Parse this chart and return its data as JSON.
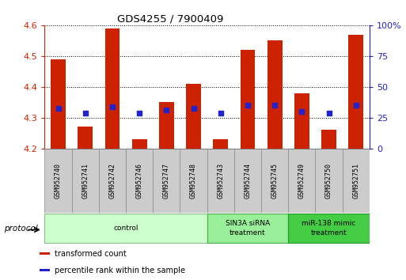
{
  "title": "GDS4255 / 7900409",
  "samples": [
    "GSM952740",
    "GSM952741",
    "GSM952742",
    "GSM952746",
    "GSM952747",
    "GSM952748",
    "GSM952743",
    "GSM952744",
    "GSM952745",
    "GSM952749",
    "GSM952750",
    "GSM952751"
  ],
  "bar_tops": [
    4.49,
    4.27,
    4.59,
    4.23,
    4.35,
    4.41,
    4.23,
    4.52,
    4.55,
    4.38,
    4.26,
    4.57
  ],
  "bar_bottom": 4.2,
  "blue_dots": [
    4.33,
    4.315,
    4.335,
    4.315,
    4.325,
    4.33,
    4.315,
    4.34,
    4.34,
    4.32,
    4.315,
    4.34
  ],
  "bar_color": "#cc2200",
  "dot_color": "#2222cc",
  "ylim_left": [
    4.2,
    4.6
  ],
  "ylim_right": [
    0,
    100
  ],
  "yticks_left": [
    4.2,
    4.3,
    4.4,
    4.5,
    4.6
  ],
  "yticks_right": [
    0,
    25,
    50,
    75,
    100
  ],
  "ytick_labels_right": [
    "0",
    "25",
    "50",
    "75",
    "100%"
  ],
  "groups": [
    {
      "label": "control",
      "start": 0,
      "end": 6,
      "color": "#ccffcc",
      "edge_color": "#88bb88"
    },
    {
      "label": "SIN3A siRNA\ntreatment",
      "start": 6,
      "end": 9,
      "color": "#99ee99",
      "edge_color": "#44aa44"
    },
    {
      "label": "miR-138 mimic\ntreatment",
      "start": 9,
      "end": 12,
      "color": "#44cc44",
      "edge_color": "#229922"
    }
  ],
  "protocol_label": "protocol",
  "legend_items": [
    {
      "label": "transformed count",
      "color": "#cc2200"
    },
    {
      "label": "percentile rank within the sample",
      "color": "#2222cc"
    }
  ],
  "grid_color": "#000000",
  "bg_color": "#ffffff",
  "plot_bg": "#ffffff",
  "bar_width": 0.55,
  "tick_color_left": "#cc2200",
  "tick_color_right": "#2222cc",
  "cell_bg": "#cccccc",
  "cell_edge": "#888888"
}
